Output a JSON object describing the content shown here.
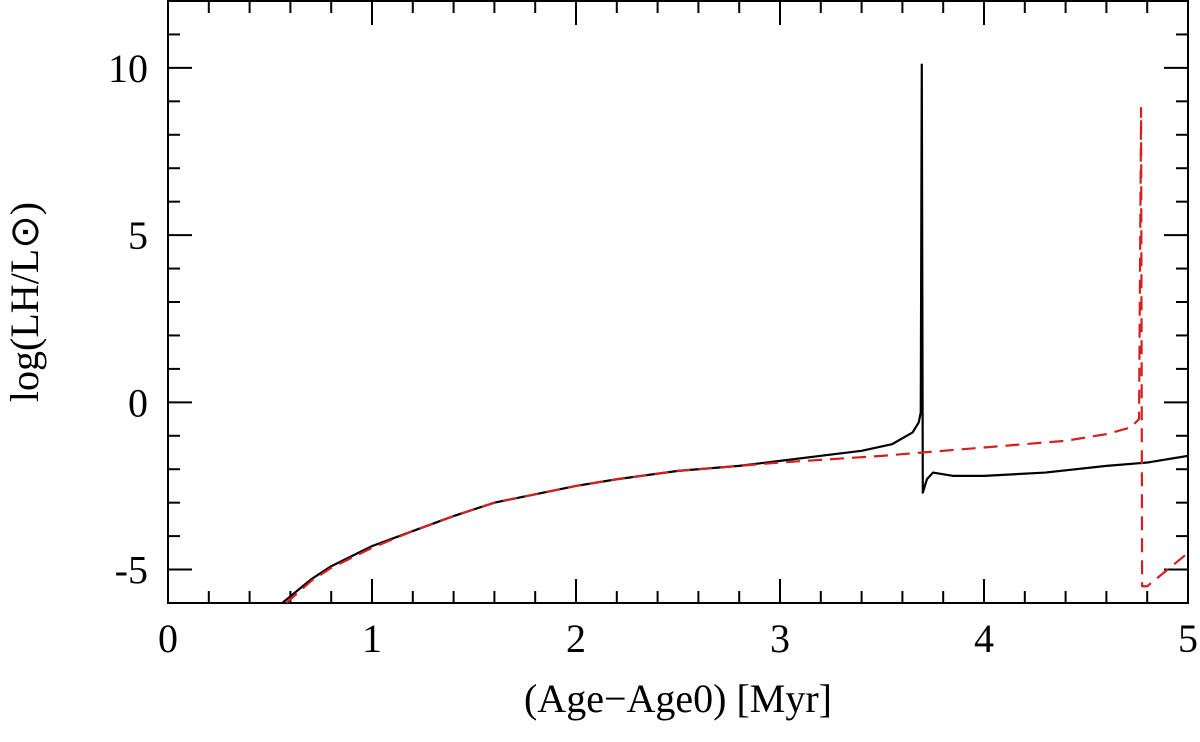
{
  "chart_data": {
    "type": "line",
    "xlabel": "(Age−Age0) [Myr]",
    "ylabel": "log(LH/L⊙)",
    "xlim": [
      0,
      5
    ],
    "ylim": [
      -6,
      12
    ],
    "xticks": [
      0,
      1,
      2,
      3,
      4,
      5
    ],
    "yticks": [
      -5,
      0,
      5,
      10
    ],
    "series": [
      {
        "color": "#000000",
        "dash": false,
        "x": [
          0.56,
          0.7,
          0.8,
          1.0,
          1.2,
          1.4,
          1.6,
          1.8,
          2.0,
          2.2,
          2.5,
          2.8,
          3.0,
          3.2,
          3.4,
          3.55,
          3.65,
          3.68,
          3.69,
          3.695,
          3.7,
          3.72,
          3.75,
          3.85,
          4.0,
          4.3,
          4.6,
          4.8,
          5.0
        ],
        "values": [
          -6,
          -5.3,
          -4.9,
          -4.3,
          -3.85,
          -3.4,
          -3.0,
          -2.75,
          -2.5,
          -2.3,
          -2.05,
          -1.9,
          -1.75,
          -1.6,
          -1.45,
          -1.25,
          -0.9,
          -0.6,
          -0.3,
          10.1,
          -2.7,
          -2.3,
          -2.1,
          -2.2,
          -2.2,
          -2.1,
          -1.9,
          -1.8,
          -1.6
        ]
      },
      {
        "color": "#d42020",
        "dash": true,
        "x": [
          0.58,
          0.7,
          0.8,
          1.0,
          1.2,
          1.4,
          1.6,
          1.8,
          2.0,
          2.2,
          2.5,
          3.0,
          3.5,
          4.0,
          4.4,
          4.6,
          4.72,
          4.76,
          4.77,
          4.775,
          4.8,
          5.0
        ],
        "values": [
          -6,
          -5.35,
          -4.95,
          -4.35,
          -3.85,
          -3.4,
          -3.0,
          -2.75,
          -2.5,
          -2.3,
          -2.05,
          -1.8,
          -1.6,
          -1.35,
          -1.15,
          -0.95,
          -0.75,
          -0.5,
          8.8,
          -5.5,
          -5.5,
          -4.5
        ]
      }
    ]
  }
}
